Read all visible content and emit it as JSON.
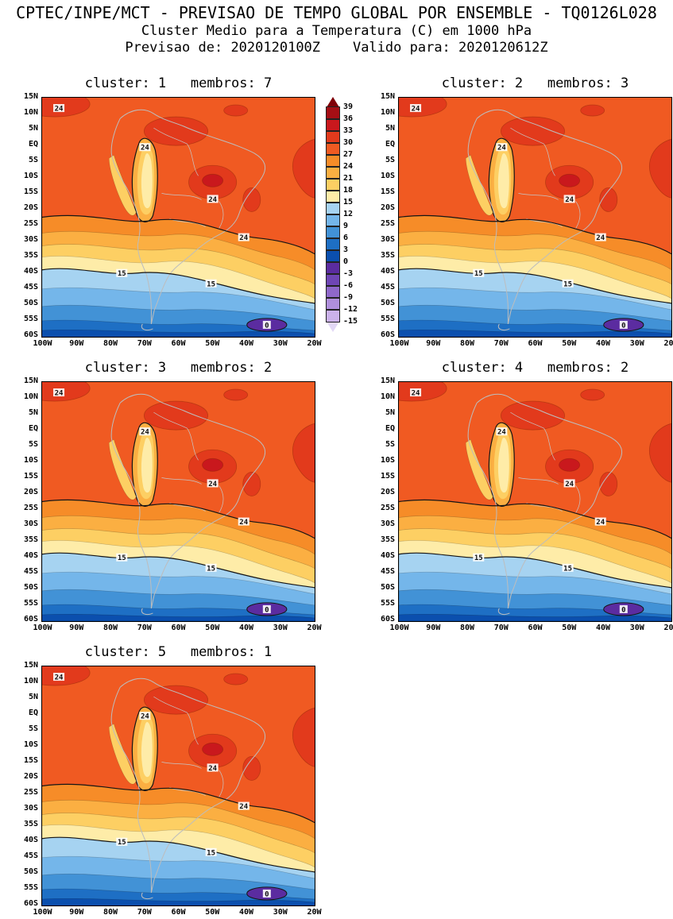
{
  "header": {
    "title": "CPTEC/INPE/MCT - PREVISAO DE TEMPO GLOBAL POR ENSEMBLE - TQ0126L028",
    "subtitle": "Cluster Medio para a Temperatura (C) em 1000 hPa",
    "validity": "Previsao de: 2020120100Z    Valido para: 2020120612Z"
  },
  "axes": {
    "lat_labels": [
      "15N",
      "10N",
      "5N",
      "EQ",
      "5S",
      "10S",
      "15S",
      "20S",
      "25S",
      "30S",
      "35S",
      "40S",
      "45S",
      "50S",
      "55S",
      "60S"
    ],
    "lon_labels": [
      "100W",
      "90W",
      "80W",
      "70W",
      "60W",
      "50W",
      "40W",
      "30W",
      "20W"
    ]
  },
  "panels": [
    {
      "cluster": 1,
      "membros": 7,
      "title": "cluster: 1   membros: 7"
    },
    {
      "cluster": 2,
      "membros": 3,
      "title": "cluster: 2   membros: 3"
    },
    {
      "cluster": 3,
      "membros": 2,
      "title": "cluster: 3   membros: 2"
    },
    {
      "cluster": 4,
      "membros": 2,
      "title": "cluster: 4   membros: 2"
    },
    {
      "cluster": 5,
      "membros": 1,
      "title": "cluster: 5   membros: 1"
    }
  ],
  "map_labels": {
    "contour_24": "24",
    "contour_15": "15",
    "contour_0": "0"
  },
  "chart_data": {
    "type": "heatmap",
    "subtype": "filled_contour_map",
    "title": "Cluster Medio para a Temperatura (C) em 1000 hPa",
    "model": "CPTEC/INPE/MCT PREVISAO DE TEMPO GLOBAL POR ENSEMBLE",
    "truncation": "TQ0126L028",
    "variable": "Temperatura",
    "units": "C",
    "level_hPa": 1000,
    "forecast_init": "2020120100Z",
    "forecast_valid": "2020120612Z",
    "region": "South America",
    "lon_range": [
      "100W",
      "20W"
    ],
    "lat_range": [
      "60S",
      "15N"
    ],
    "contour_interval_C": 3,
    "levels_C": [
      -15,
      -12,
      -9,
      -6,
      -3,
      0,
      3,
      6,
      9,
      12,
      15,
      18,
      21,
      24,
      27,
      30,
      33,
      36,
      39
    ],
    "labeled_contours_C": [
      24,
      15,
      0
    ],
    "panels": [
      {
        "cluster": 1,
        "membros": 7
      },
      {
        "cluster": 2,
        "membros": 3
      },
      {
        "cluster": 3,
        "membros": 2
      },
      {
        "cluster": 4,
        "membros": 2
      },
      {
        "cluster": 5,
        "membros": 1
      }
    ],
    "pattern_summary": "Warm 27-33C air over tropical South America and the adjacent Atlantic, a cool strip (15-21C) along the Andes and the Peru/Chile coast, a 15-18C belt near 25S-38S, and temperatures decreasing southward to 0-6C near 60S with a below-0C purple pocket near 55S,30W labeled 0.",
    "colorbar": {
      "tick_values": [
        39,
        36,
        33,
        30,
        27,
        24,
        21,
        18,
        15,
        12,
        9,
        6,
        3,
        0,
        -3,
        -6,
        -9,
        -12,
        -15
      ],
      "band_colors": [
        "#a50f15",
        "#c9181d",
        "#e23a1c",
        "#f05a22",
        "#f68c28",
        "#fbaf42",
        "#fdcf63",
        "#feeca8",
        "#a6d3f1",
        "#74b6ea",
        "#4292d6",
        "#1e6fc4",
        "#0b4fae",
        "#5b2ca0",
        "#6f46b5",
        "#8f68ca",
        "#af8fdc",
        "#cbb2ea"
      ],
      "over_color": "#7f0009",
      "under_color": "#e2d7f6"
    }
  }
}
